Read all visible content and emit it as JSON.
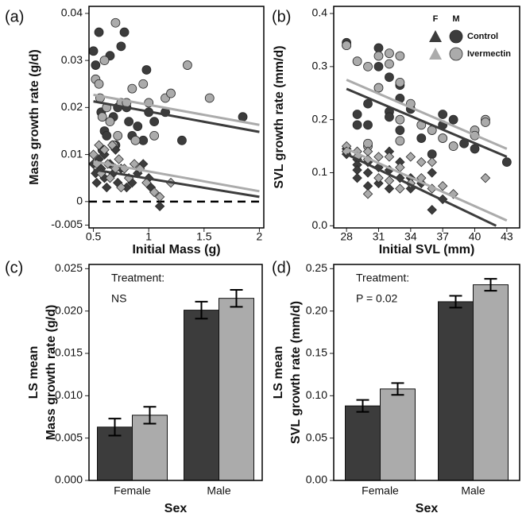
{
  "chart_data": [
    {
      "type": "scatter",
      "panel_label": "(a)",
      "xlabel": "Initial Mass (g)",
      "ylabel": "Mass growth rate (g/d)",
      "xlim": [
        0.46,
        2.04
      ],
      "ylim": [
        -0.0056,
        0.0415
      ],
      "xticks": [
        0.5,
        1,
        1.5,
        2
      ],
      "yticks": [
        -0.005,
        0,
        0.01,
        0.02,
        0.03,
        0.04
      ],
      "hline": 0,
      "series": [
        {
          "marker": "circle",
          "color": "#3c3c3c",
          "x": [
            0.5,
            0.52,
            0.55,
            0.57,
            0.6,
            0.62,
            0.65,
            0.68,
            0.7,
            0.75,
            0.78,
            0.8,
            0.82,
            0.85,
            0.9,
            0.95,
            0.98,
            1.0,
            1.05,
            1.15,
            1.3,
            1.85,
            0.72,
            0.58
          ],
          "values": [
            0.032,
            0.029,
            0.036,
            0.019,
            0.015,
            0.014,
            0.031,
            0.018,
            0.012,
            0.033,
            0.036,
            0.02,
            0.017,
            0.014,
            0.016,
            0.013,
            0.028,
            0.019,
            0.017,
            0.019,
            0.013,
            0.018,
            0.02,
            0.011
          ]
        },
        {
          "marker": "circle",
          "color": "#ababab",
          "x": [
            0.52,
            0.55,
            0.56,
            0.58,
            0.6,
            0.65,
            0.7,
            0.72,
            0.75,
            0.8,
            0.85,
            0.88,
            0.95,
            1.0,
            1.05,
            1.15,
            1.2,
            1.35,
            1.55,
            0.68,
            0.62
          ],
          "values": [
            0.026,
            0.025,
            0.022,
            0.018,
            0.03,
            0.017,
            0.038,
            0.014,
            0.021,
            0.021,
            0.024,
            0.013,
            0.025,
            0.021,
            0.014,
            0.022,
            0.023,
            0.029,
            0.022,
            0.012,
            0.02
          ]
        },
        {
          "marker": "diamond",
          "color": "#3c3c3c",
          "x": [
            0.5,
            0.52,
            0.53,
            0.55,
            0.57,
            0.6,
            0.62,
            0.65,
            0.68,
            0.7,
            0.72,
            0.75,
            0.8,
            0.85,
            0.9,
            0.95,
            1.0,
            1.02,
            1.1,
            0.6
          ],
          "values": [
            0.008,
            0.006,
            0.004,
            0.009,
            0.007,
            0.005,
            0.003,
            0.008,
            0.006,
            0.011,
            0.004,
            0.007,
            0.003,
            0.004,
            0.006,
            0.008,
            0.005,
            0.003,
            -0.001,
            0.01
          ]
        },
        {
          "marker": "diamond",
          "color": "#ababab",
          "x": [
            0.5,
            0.53,
            0.55,
            0.57,
            0.6,
            0.63,
            0.65,
            0.7,
            0.73,
            0.78,
            0.82,
            0.87,
            0.92,
            0.98,
            1.05,
            1.1,
            1.2,
            0.75,
            0.67
          ],
          "values": [
            0.01,
            0.008,
            0.012,
            0.006,
            0.011,
            0.008,
            0.005,
            0.007,
            0.009,
            0.007,
            0.005,
            0.008,
            0.007,
            0.004,
            0.002,
            0.001,
            0.004,
            0.003,
            0.012
          ]
        }
      ],
      "lines": [
        {
          "color": "#ababab",
          "x": [
            0.5,
            2
          ],
          "values": [
            0.0227,
            0.0163
          ]
        },
        {
          "color": "#3c3c3c",
          "x": [
            0.5,
            2
          ],
          "values": [
            0.0213,
            0.0148
          ]
        },
        {
          "color": "#ababab",
          "x": [
            0.5,
            2
          ],
          "values": [
            0.0085,
            0.0022
          ]
        },
        {
          "color": "#3c3c3c",
          "x": [
            0.5,
            2
          ],
          "values": [
            0.0068,
            0.001
          ]
        }
      ]
    },
    {
      "type": "scatter",
      "panel_label": "(b)",
      "xlabel": "Initial SVL (mm)",
      "ylabel": "SVL growth rate (mm/d)",
      "xlim": [
        26.8,
        44.2
      ],
      "ylim": [
        -0.004,
        0.4135
      ],
      "xticks": [
        28,
        31,
        34,
        37,
        40,
        43
      ],
      "yticks": [
        {
          "value": 0,
          "label": "0.0"
        },
        0.1,
        0.2,
        0.3,
        0.4
      ],
      "legend": {
        "columns": [
          "F",
          "M"
        ],
        "rows": [
          "Control",
          "Ivermectin"
        ],
        "colors": [
          "#3c3c3c",
          "#ababab"
        ]
      },
      "series": [
        {
          "marker": "circle",
          "color": "#3c3c3c",
          "x": [
            28,
            28,
            29,
            29,
            30,
            30,
            31,
            31,
            32,
            32,
            33,
            33,
            33,
            34,
            35,
            37,
            37,
            38,
            39,
            40,
            43,
            36,
            32
          ],
          "values": [
            0.345,
            0.34,
            0.21,
            0.19,
            0.19,
            0.23,
            0.335,
            0.3,
            0.28,
            0.215,
            0.265,
            0.24,
            0.18,
            0.22,
            0.165,
            0.21,
            0.19,
            0.2,
            0.155,
            0.145,
            0.12,
            0.135,
            0.205
          ]
        },
        {
          "marker": "circle",
          "color": "#ababab",
          "x": [
            28,
            29,
            30,
            30,
            30,
            31,
            31,
            32,
            32,
            33,
            33,
            33,
            34,
            35,
            36,
            37,
            38,
            40,
            40,
            41,
            41,
            33
          ],
          "values": [
            0.34,
            0.31,
            0.3,
            0.15,
            0.155,
            0.32,
            0.26,
            0.325,
            0.305,
            0.32,
            0.27,
            0.2,
            0.23,
            0.19,
            0.18,
            0.165,
            0.15,
            0.18,
            0.17,
            0.2,
            0.195,
            0.16
          ]
        },
        {
          "marker": "diamond",
          "color": "#3c3c3c",
          "x": [
            28,
            28,
            29,
            29,
            29,
            29,
            30,
            30,
            30,
            31,
            31,
            32,
            32,
            33,
            33,
            34,
            34,
            35,
            36,
            37,
            36,
            32
          ],
          "values": [
            0.145,
            0.135,
            0.125,
            0.115,
            0.105,
            0.09,
            0.12,
            0.1,
            0.075,
            0.11,
            0.08,
            0.07,
            0.105,
            0.09,
            0.12,
            0.07,
            0.09,
            0.08,
            0.03,
            0.05,
            0.1,
            0.14
          ]
        },
        {
          "marker": "diamond",
          "color": "#ababab",
          "x": [
            28,
            28,
            29,
            29,
            30,
            30,
            30,
            31,
            31,
            32,
            32,
            33,
            33,
            34,
            35,
            35,
            36,
            36,
            37,
            38,
            41,
            34
          ],
          "values": [
            0.15,
            0.14,
            0.14,
            0.13,
            0.14,
            0.125,
            0.06,
            0.09,
            0.13,
            0.13,
            0.085,
            0.11,
            0.07,
            0.13,
            0.12,
            0.09,
            0.07,
            0.12,
            0.075,
            0.06,
            0.09,
            0.08
          ]
        }
      ],
      "lines": [
        {
          "color": "#ababab",
          "x": [
            28,
            43
          ],
          "values": [
            0.275,
            0.145
          ]
        },
        {
          "color": "#3c3c3c",
          "x": [
            28,
            43
          ],
          "values": [
            0.258,
            0.13
          ]
        },
        {
          "color": "#ababab",
          "x": [
            28,
            43
          ],
          "values": [
            0.145,
            0.01
          ]
        },
        {
          "color": "#3c3c3c",
          "x": [
            28,
            42
          ],
          "values": [
            0.135,
            0
          ]
        }
      ]
    },
    {
      "type": "bar",
      "panel_label": "(c)",
      "xlabel": "Sex",
      "ylabel": [
        "LS mean",
        "Mass growth rate (g/d)"
      ],
      "annotations": [
        "Treatment:",
        "NS"
      ],
      "categories": [
        "Female",
        "Male"
      ],
      "ylim": [
        0,
        0.0255
      ],
      "yticks": [
        {
          "value": 0,
          "label": "0.000"
        },
        0.005,
        {
          "value": 0.01,
          "label": "0.010"
        },
        0.015,
        {
          "value": 0.02,
          "label": "0.020"
        },
        0.025
      ],
      "series": [
        {
          "color": "#3c3c3c",
          "values": [
            0.0063,
            0.0201
          ],
          "errors": [
            0.001,
            0.001
          ]
        },
        {
          "color": "#ababab",
          "values": [
            0.0077,
            0.0215
          ],
          "errors": [
            0.001,
            0.001
          ]
        }
      ]
    },
    {
      "type": "bar",
      "panel_label": "(d)",
      "xlabel": "Sex",
      "ylabel": [
        "LS mean",
        "SVL growth rate (mm/d)"
      ],
      "annotations": [
        "Treatment:",
        "P = 0.02"
      ],
      "categories": [
        "Female",
        "Male"
      ],
      "ylim": [
        0,
        0.255
      ],
      "yticks": [
        {
          "value": 0,
          "label": "0.00"
        },
        0.05,
        {
          "value": 0.1,
          "label": "0.10"
        },
        0.15,
        {
          "value": 0.2,
          "label": "0.20"
        },
        0.25
      ],
      "series": [
        {
          "color": "#3c3c3c",
          "values": [
            0.088,
            0.211
          ],
          "errors": [
            0.007,
            0.007
          ]
        },
        {
          "color": "#ababab",
          "values": [
            0.108,
            0.231
          ],
          "errors": [
            0.007,
            0.007
          ]
        }
      ]
    }
  ]
}
